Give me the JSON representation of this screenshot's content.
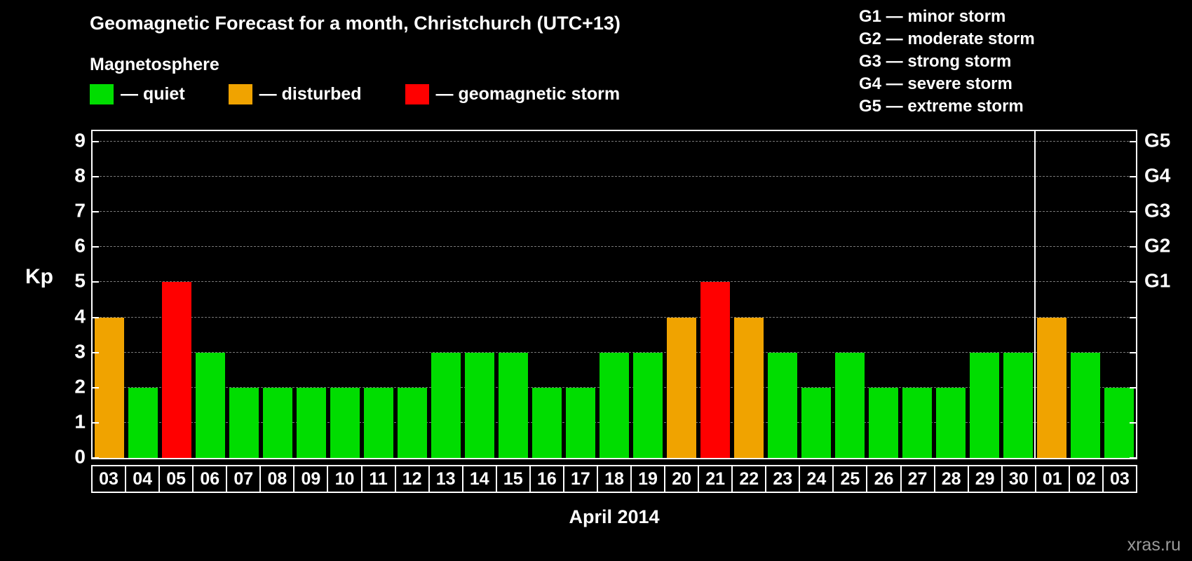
{
  "title": "Geomagnetic Forecast for a month, Christchurch (UTC+13)",
  "legend": {
    "heading": "Magnetosphere",
    "items": [
      {
        "status": "quiet",
        "label": "— quiet",
        "color": "#00dd00"
      },
      {
        "status": "disturbed",
        "label": "— disturbed",
        "color": "#f0a300"
      },
      {
        "status": "storm",
        "label": "— geomagnetic storm",
        "color": "#ff0000"
      }
    ]
  },
  "g_legend": [
    "G1 — minor storm",
    "G2 — moderate storm",
    "G3 — strong storm",
    "G4 — severe storm",
    "G5 — extreme storm"
  ],
  "axis": {
    "kp_label": "Kp",
    "y_ticks": [
      0,
      1,
      2,
      3,
      4,
      5,
      6,
      7,
      8,
      9
    ],
    "g_ticks": [
      {
        "label": "G1",
        "value": 5
      },
      {
        "label": "G2",
        "value": 6
      },
      {
        "label": "G3",
        "value": 7
      },
      {
        "label": "G4",
        "value": 8
      },
      {
        "label": "G5",
        "value": 9
      }
    ]
  },
  "xlabel": "April 2014",
  "watermark": "xras.ru",
  "chart_data": {
    "type": "bar",
    "title": "Geomagnetic Forecast for a month, Christchurch (UTC+13)",
    "ylabel": "Kp",
    "xlabel": "April 2014",
    "ylim": [
      0,
      9
    ],
    "grid": "dashed horizontal at each integer 1-9",
    "legend_position": "top-left",
    "categories": [
      "03",
      "04",
      "05",
      "06",
      "07",
      "08",
      "09",
      "10",
      "11",
      "12",
      "13",
      "14",
      "15",
      "16",
      "17",
      "18",
      "19",
      "20",
      "21",
      "22",
      "23",
      "24",
      "25",
      "26",
      "27",
      "28",
      "29",
      "30",
      "01",
      "02",
      "03"
    ],
    "values": [
      4,
      2,
      5,
      3,
      2,
      2,
      2,
      2,
      2,
      2,
      3,
      3,
      3,
      2,
      2,
      3,
      3,
      4,
      5,
      4,
      3,
      2,
      3,
      2,
      2,
      2,
      3,
      3,
      4,
      3,
      2
    ],
    "statuses": [
      "disturbed",
      "quiet",
      "storm",
      "quiet",
      "quiet",
      "quiet",
      "quiet",
      "quiet",
      "quiet",
      "quiet",
      "quiet",
      "quiet",
      "quiet",
      "quiet",
      "quiet",
      "quiet",
      "quiet",
      "disturbed",
      "storm",
      "disturbed",
      "quiet",
      "quiet",
      "quiet",
      "quiet",
      "quiet",
      "quiet",
      "quiet",
      "quiet",
      "disturbed",
      "quiet",
      "quiet"
    ],
    "status_colors": {
      "quiet": "#00dd00",
      "disturbed": "#f0a300",
      "storm": "#ff0000"
    },
    "month_separator_after_index": 27
  }
}
